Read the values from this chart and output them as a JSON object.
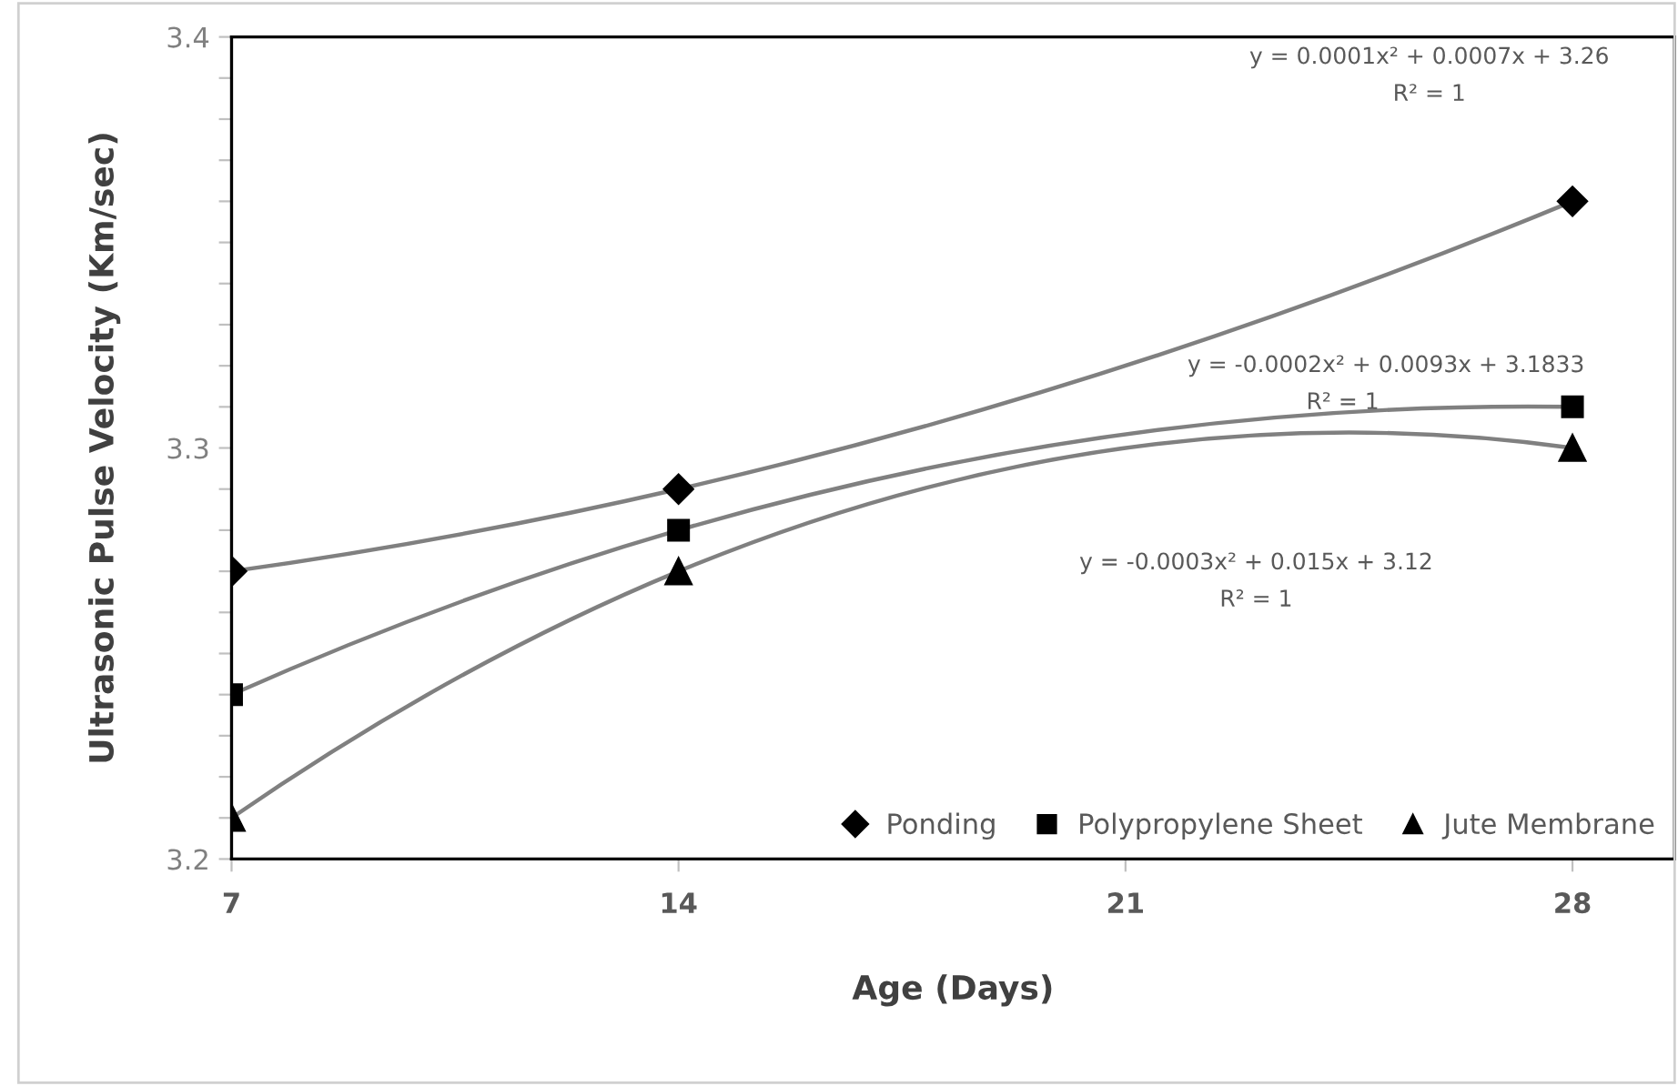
{
  "chart_data": {
    "type": "line",
    "xlabel": "Age (Days)",
    "ylabel": "Ultrasonic Pulse Velocity (Km/sec)",
    "x": [
      7,
      14,
      28
    ],
    "series": [
      {
        "name": "Ponding",
        "color": "#000000",
        "marker": "diamond",
        "values": [
          3.27,
          3.29,
          3.36
        ]
      },
      {
        "name": "Polypropylene Sheet",
        "color": "#000000",
        "marker": "square",
        "values": [
          3.24,
          3.28,
          3.31
        ]
      },
      {
        "name": "Jute Membrane",
        "color": "#000000",
        "marker": "triangle",
        "values": [
          3.21,
          3.27,
          3.3
        ]
      }
    ],
    "xlim": [
      7,
      29.6
    ],
    "xticks": [
      7,
      14,
      21,
      28
    ],
    "ylim": [
      3.2,
      3.4
    ],
    "yticks": [
      3.2,
      {
        "value": 3.21,
        "label": null
      },
      {
        "value": 3.22,
        "label": null
      },
      {
        "value": 3.23,
        "label": null
      },
      {
        "value": 3.24,
        "label": null
      },
      {
        "value": 3.25,
        "label": null
      },
      {
        "value": 3.26,
        "label": null
      },
      {
        "value": 3.27,
        "label": null
      },
      {
        "value": 3.28,
        "label": null
      },
      {
        "value": 3.29,
        "label": null
      },
      3.3,
      {
        "value": 3.31,
        "label": null
      },
      {
        "value": 3.32,
        "label": null
      },
      {
        "value": 3.33,
        "label": null
      },
      {
        "value": 3.34,
        "label": null
      },
      {
        "value": 3.35,
        "label": null
      },
      {
        "value": 3.36,
        "label": null
      },
      {
        "value": 3.37,
        "label": null
      },
      {
        "value": 3.38,
        "label": null
      },
      {
        "value": 3.39,
        "label": null
      },
      3.4
    ],
    "annotations": [
      "y = 0.0001x² + 0.0007x + 3.26",
      "R² = 1",
      "y = -0.0002x² + 0.0093x + 3.1833",
      "R² = 1",
      "y = -0.0003x² + 0.015x + 3.12",
      "R² = 1"
    ],
    "legend": "bottom right",
    "grid": false,
    "line_style": "solid"
  }
}
